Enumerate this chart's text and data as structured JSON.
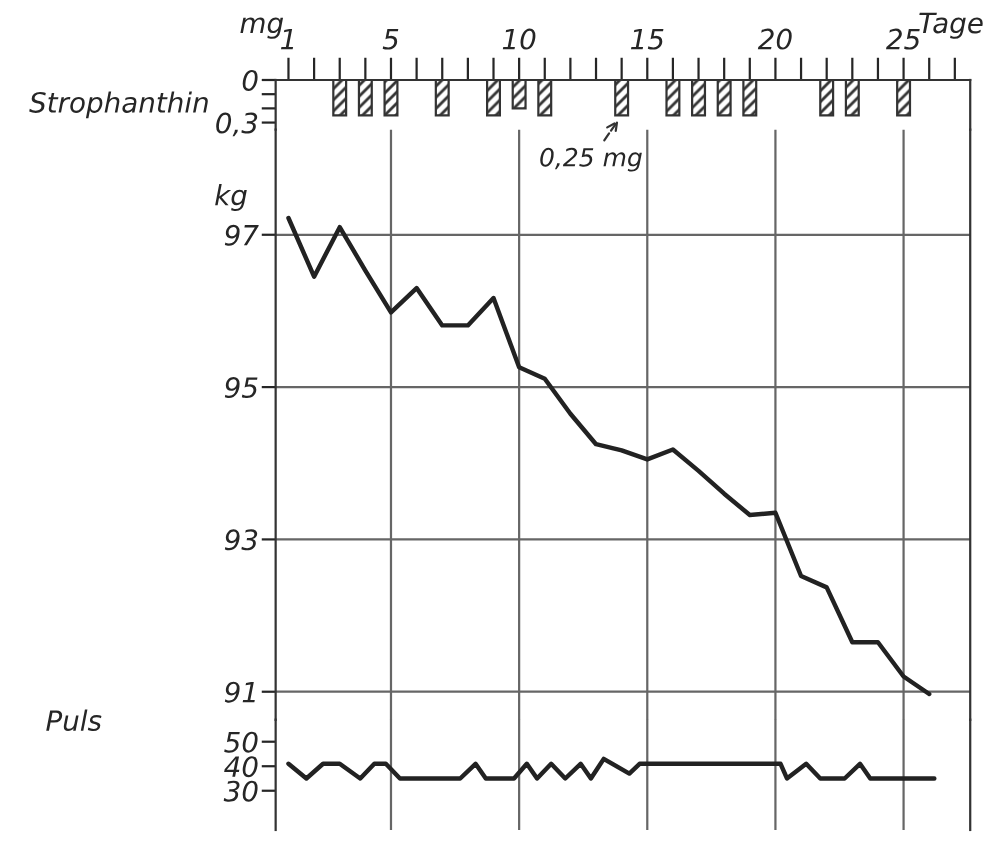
{
  "chart_data": [
    {
      "type": "bar",
      "xlabel": "Tage",
      "ylabel": "mg",
      "annotations": [
        "Strophanthin",
        {
          "text": "0,25 mg",
          "x": 14,
          "y": 0.25
        }
      ],
      "x": [
        3,
        4,
        5,
        7,
        9,
        10,
        11,
        14,
        16,
        17,
        18,
        19,
        22,
        23,
        25
      ],
      "values": [
        0.25,
        0.25,
        0.25,
        0.25,
        0.25,
        0.2,
        0.25,
        0.25,
        0.25,
        0.25,
        0.25,
        0.25,
        0.25,
        0.25,
        0.25
      ],
      "color": "#333333",
      "xlim": [
        0.5,
        27.6
      ],
      "ylim": [
        0.35,
        0
      ],
      "xticks": [
        1,
        {
          "value": 2,
          "label": null
        },
        {
          "value": 3,
          "label": null
        },
        {
          "value": 4,
          "label": null
        },
        5,
        {
          "value": 6,
          "label": null
        },
        {
          "value": 7,
          "label": null
        },
        {
          "value": 8,
          "label": null
        },
        {
          "value": 9,
          "label": null
        },
        10,
        {
          "value": 11,
          "label": null
        },
        {
          "value": 12,
          "label": null
        },
        {
          "value": 13,
          "label": null
        },
        {
          "value": 14,
          "label": null
        },
        15,
        {
          "value": 16,
          "label": null
        },
        {
          "value": 17,
          "label": null
        },
        {
          "value": 18,
          "label": null
        },
        {
          "value": 19,
          "label": null
        },
        20,
        {
          "value": 21,
          "label": null
        },
        {
          "value": 22,
          "label": null
        },
        {
          "value": 23,
          "label": null
        },
        {
          "value": 24,
          "label": null
        },
        25,
        {
          "value": 26,
          "label": null
        },
        {
          "value": 27,
          "label": null
        }
      ],
      "yticks": [
        0,
        {
          "value": 0.1,
          "label": null
        },
        {
          "value": 0.2,
          "label": null
        },
        {
          "value": 0.3,
          "label": "0,3"
        }
      ],
      "grid": false
    },
    {
      "type": "line",
      "ylabel": "kg",
      "x": [
        1,
        2,
        3,
        4,
        5,
        6,
        7,
        8,
        9,
        10,
        11,
        12,
        13,
        14,
        15,
        16,
        17,
        18,
        19,
        20,
        21,
        22,
        23,
        24,
        25,
        26
      ],
      "values": [
        97.22,
        96.45,
        97.1,
        96.53,
        95.98,
        96.3,
        95.81,
        95.81,
        96.17,
        95.26,
        95.11,
        94.65,
        94.25,
        94.17,
        94.05,
        94.18,
        93.9,
        93.6,
        93.32,
        93.35,
        92.52,
        92.37,
        91.65,
        91.65,
        91.2,
        90.97
      ],
      "color": "#222222",
      "xlim": [
        0.5,
        27.6
      ],
      "ylim": [
        90.63,
        98.38
      ],
      "xticks": [
        5,
        10,
        15,
        20,
        25
      ],
      "yticks": [
        91,
        93,
        95,
        97
      ],
      "tick_labels": "y",
      "grid": true
    },
    {
      "type": "line",
      "ylabel": "Puls",
      "x": [
        1.0,
        1.7,
        2.35,
        3.0,
        3.8,
        4.35,
        4.8,
        5.35,
        7.7,
        8.3,
        8.7,
        9.8,
        10.3,
        10.7,
        11.25,
        11.8,
        12.4,
        12.8,
        13.3,
        14.3,
        14.7,
        20.2,
        20.45,
        21.2,
        21.75,
        22.7,
        23.3,
        23.7,
        26.2
      ],
      "values": [
        41,
        35,
        41,
        41,
        35,
        41,
        41,
        35,
        35,
        41,
        35,
        35,
        41,
        35,
        41,
        35,
        41,
        35,
        43,
        37,
        41,
        41,
        35,
        41,
        35,
        35,
        41,
        35,
        35
      ],
      "color": "#222222",
      "xlim": [
        0.5,
        27.6
      ],
      "ylim": [
        14,
        59
      ],
      "xticks": [
        5,
        10,
        15,
        20,
        25
      ],
      "yticks": [
        30,
        40,
        50
      ],
      "tick_labels": "y",
      "grid": "x"
    }
  ]
}
